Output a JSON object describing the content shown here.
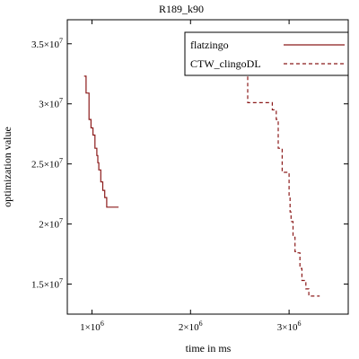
{
  "chart_data": {
    "type": "line",
    "title": "R189_k90",
    "xlabel": "time in ms",
    "ylabel": "optimization value",
    "xlim": [
      750000,
      3600000
    ],
    "ylim": [
      12500000,
      37000000
    ],
    "x_ticks": [
      {
        "value": 1000000,
        "mantissa": "1×10",
        "exp": "6"
      },
      {
        "value": 2000000,
        "mantissa": "2×10",
        "exp": "6"
      },
      {
        "value": 3000000,
        "mantissa": "3×10",
        "exp": "6"
      }
    ],
    "y_ticks": [
      {
        "value": 15000000,
        "mantissa": "1.5×10",
        "exp": "7"
      },
      {
        "value": 20000000,
        "mantissa": "2×10",
        "exp": "7"
      },
      {
        "value": 25000000,
        "mantissa": "2.5×10",
        "exp": "7"
      },
      {
        "value": 30000000,
        "mantissa": "3×10",
        "exp": "7"
      },
      {
        "value": 35000000,
        "mantissa": "3.5×10",
        "exp": "7"
      }
    ],
    "grid": false,
    "legend_position": "top-right",
    "series": [
      {
        "name": "flatzingo",
        "color": "#8b1a1a",
        "dash": "solid",
        "step": true,
        "x": [
          920000,
          940000,
          970000,
          990000,
          1010000,
          1030000,
          1050000,
          1060000,
          1070000,
          1090000,
          1110000,
          1130000,
          1150000,
          1170000,
          1270000
        ],
        "y": [
          32300000,
          30900000,
          28700000,
          28000000,
          27400000,
          26300000,
          25700000,
          25100000,
          24500000,
          23500000,
          22800000,
          22200000,
          21400000,
          21400000,
          21400000
        ]
      },
      {
        "name": "CTW_clingoDL",
        "color": "#8b1a1a",
        "dash": "dashed",
        "step": true,
        "x": [
          2540000,
          2580000,
          2830000,
          2870000,
          2890000,
          2930000,
          2970000,
          3000000,
          3010000,
          3020000,
          3040000,
          3060000,
          3090000,
          3110000,
          3130000,
          3170000,
          3200000,
          3230000,
          3260000,
          3310000
        ],
        "y": [
          33000000,
          30100000,
          29500000,
          28700000,
          26300000,
          24300000,
          24300000,
          22300000,
          21000000,
          20200000,
          18900000,
          17700000,
          17600000,
          16300000,
          15300000,
          14600000,
          14000000,
          14000000,
          14000000,
          14000000
        ]
      }
    ]
  }
}
